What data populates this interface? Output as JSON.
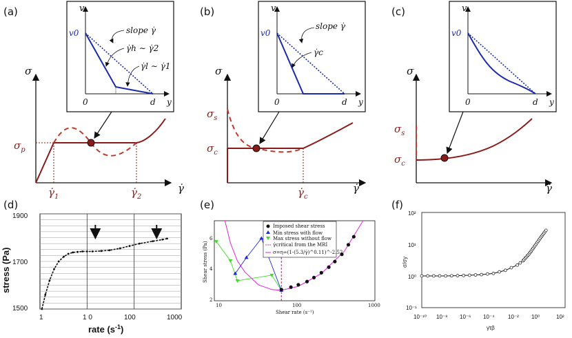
{
  "panels": {
    "a": {
      "label": "(a)",
      "sigma": "σ",
      "sigma_p": "σ",
      "sigma_p_sub": "p",
      "gdot1": "γ̇",
      "gdot1_sub": "1",
      "gdot2": "γ̇",
      "gdot2_sub": "2",
      "xaxis": "γ̇",
      "inset": {
        "v": "v",
        "v0": "v0",
        "zero": "0",
        "d": "d",
        "y": "y",
        "slope": "slope γ̇",
        "gh": "γ̇h ∼ γ̇2",
        "gl": "γ̇l ∼ γ̇1"
      }
    },
    "b": {
      "label": "(b)",
      "sigma": "σ",
      "sigma_s": "σ",
      "sigma_s_sub": "s",
      "sigma_c": "σ",
      "sigma_c_sub": "c",
      "gdotc": "γ̇",
      "gdotc_sub": "c",
      "xaxis": "γ̇",
      "inset": {
        "v": "v",
        "v0": "v0",
        "zero": "0",
        "d": "d",
        "y": "y",
        "slope": "slope γ̇",
        "gc": "γ̇c"
      }
    },
    "c": {
      "label": "(c)",
      "sigma": "σ",
      "sigma_s": "σ",
      "sigma_s_sub": "s",
      "sigma_c": "σ",
      "sigma_c_sub": "c",
      "xaxis": "γ̇",
      "inset": {
        "v": "v",
        "v0": "v0",
        "zero": "0",
        "d": "d",
        "y": "y"
      }
    },
    "d": {
      "label": "(d)",
      "ylabel": "stress (Pa)",
      "xlabel": "rate (s",
      "xlabel_sup": "-1",
      "xlabel_end": ")",
      "yticks": [
        "1900",
        "1700",
        "1500"
      ],
      "xticks": [
        "1",
        "1 0",
        "100",
        "1000"
      ]
    },
    "e": {
      "label": "(e)",
      "ylabel": "Shear stress (Pa)",
      "xlabel": "Shear rate (s⁻¹)",
      "yticks": [
        "6",
        "4",
        "2"
      ],
      "xticks": [
        "10",
        "100",
        "1000"
      ],
      "legend": [
        "Imposed shear stress",
        "Min stress with flow",
        "Max stress without flow",
        "γ̇critical from the MRI",
        "σ=η∞(1-(5.3/γ̇)^0.11)^-2.52"
      ]
    },
    "f": {
      "label": "(f)",
      "ylabel": "σ/σy",
      "xlabel": "γ̇τβ",
      "yticks": [
        "10²",
        "10¹",
        "10⁰",
        "10⁻¹"
      ],
      "xticks": [
        "10⁻¹⁰",
        "10⁻⁸",
        "10⁻⁶",
        "10⁻⁴",
        "10⁻²",
        "10⁰",
        "10²"
      ]
    }
  },
  "chart_data": [
    {
      "type": "scatter",
      "panel": "d",
      "title": "",
      "xlabel": "rate (s-1)",
      "ylabel": "stress (Pa)",
      "xscale": "log",
      "xlim": [
        1,
        1000
      ],
      "ylim": [
        1500,
        1900
      ],
      "series": [
        {
          "name": "measured",
          "x": [
            1.1,
            1.3,
            1.6,
            2,
            2.5,
            3.2,
            4,
            5,
            6.3,
            8,
            10,
            13,
            20,
            30,
            50,
            80,
            130,
            250,
            400,
            500
          ],
          "y": [
            1500,
            1560,
            1620,
            1668,
            1700,
            1720,
            1732,
            1738,
            1740,
            1742,
            1742,
            1742,
            1744,
            1747,
            1755,
            1765,
            1775,
            1785,
            1792,
            1796
          ]
        }
      ],
      "arrows_at_x": [
        15,
        300
      ]
    },
    {
      "type": "line",
      "panel": "e",
      "title": "",
      "xlabel": "Shear rate (s-1)",
      "ylabel": "Shear stress (Pa)",
      "xscale": "log",
      "xlim": [
        8,
        1000
      ],
      "ylim": [
        2,
        7
      ],
      "series": [
        {
          "name": "Imposed shear stress",
          "x": [
            60,
            80,
            100,
            130,
            160,
            200,
            250,
            300,
            370,
            450,
            530
          ],
          "y": [
            2.7,
            2.85,
            3.0,
            3.2,
            3.45,
            3.75,
            4.1,
            4.45,
            4.9,
            5.5,
            6.0
          ]
        },
        {
          "name": "Min stress with flow",
          "x": [
            15,
            21,
            33,
            60
          ],
          "y": [
            3.7,
            4.7,
            5.9,
            2.65
          ]
        },
        {
          "name": "Max stress without flow",
          "x": [
            8.5,
            13,
            16,
            45,
            60
          ],
          "y": [
            5.7,
            4.5,
            3.25,
            3.6,
            2.65
          ]
        },
        {
          "name": "γ̇critical from the MRI",
          "x": [
            60,
            60
          ],
          "y": [
            2,
            6.8
          ]
        },
        {
          "name": "σ=η∞(1-(5.3/γ̇)^0.11)^-2.52",
          "x": [
            11,
            13,
            16,
            20,
            30,
            45,
            60,
            100,
            200,
            400,
            700
          ],
          "y": [
            7,
            5.6,
            4.5,
            3.8,
            3.0,
            2.7,
            2.65,
            2.9,
            3.7,
            5.1,
            7
          ]
        }
      ]
    },
    {
      "type": "scatter",
      "panel": "f",
      "title": "",
      "xlabel": "γ̇τβ",
      "ylabel": "σ/σy",
      "xscale": "log",
      "yscale": "log",
      "xlim": [
        1e-10,
        100
      ],
      "ylim": [
        0.1,
        100
      ],
      "series": [
        {
          "name": "data",
          "x": [
            1e-10,
            1e-09,
            1e-08,
            1e-07,
            1e-06,
            1e-05,
            0.0001,
            0.001,
            0.01,
            0.03,
            0.1,
            0.3,
            1,
            3
          ],
          "y": [
            1,
            1,
            1,
            1.02,
            1.05,
            1.1,
            1.2,
            1.5,
            2.2,
            3,
            5,
            9,
            17,
            30
          ]
        }
      ]
    }
  ]
}
